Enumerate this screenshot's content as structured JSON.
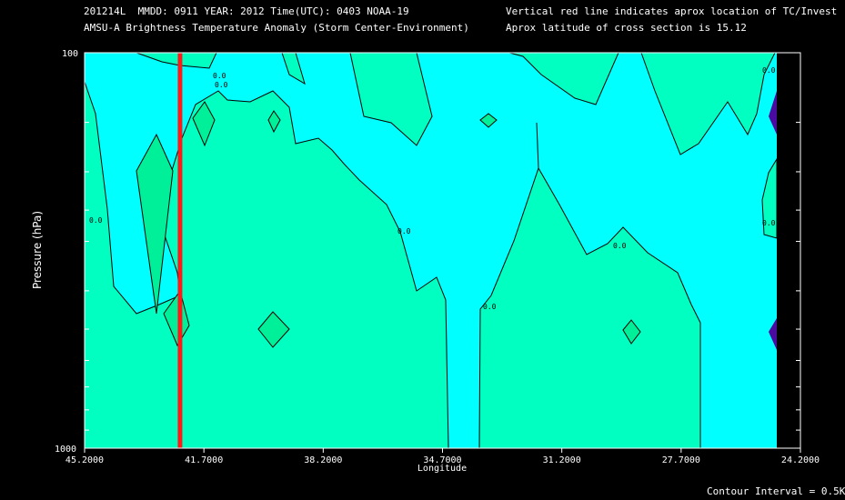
{
  "header": {
    "line1": "201214L  MMDD: 0911 YEAR: 2012 Time(UTC): 0403 NOAA-19",
    "line2": "AMSU-A Brightness Temperature Anomaly (Storm Center-Environment)",
    "line3": "Vertical red line indicates aprox location of TC/Invest",
    "line4": "Aprox latitude of cross section is 15.12"
  },
  "footer": {
    "contour_interval": "Contour Interval = 0.5K"
  },
  "colors": {
    "background": "#000000",
    "level_cyan": "#00ffff",
    "level_0": "#00ffc0",
    "level_pos": "#00f09a",
    "level_neg": "#4b0aa0",
    "contour": "#000000",
    "tc_line": "#ff1a1a"
  },
  "chart_data": {
    "type": "contour",
    "xlabel": "Longitude",
    "ylabel": "Pressure (hPa)",
    "x_tick_labels": [
      "45.2000",
      "41.7000",
      "38.2000",
      "34.7000",
      "31.2000",
      "27.7000",
      "24.2000"
    ],
    "x_ticks": [
      45.2,
      41.7,
      38.2,
      34.7,
      31.2,
      27.7,
      24.2
    ],
    "xlim": [
      45.2,
      24.2
    ],
    "y_tick_labels": [
      "100",
      "1000"
    ],
    "ylim": [
      1000,
      100
    ],
    "y_scale": "log",
    "y_minor_ticks": [
      150,
      200,
      250,
      300,
      400,
      500,
      600,
      700,
      800,
      900
    ],
    "tc_longitude": 42.4,
    "contour_label": "0.0",
    "contour_interval": 0.5,
    "grid": false
  }
}
